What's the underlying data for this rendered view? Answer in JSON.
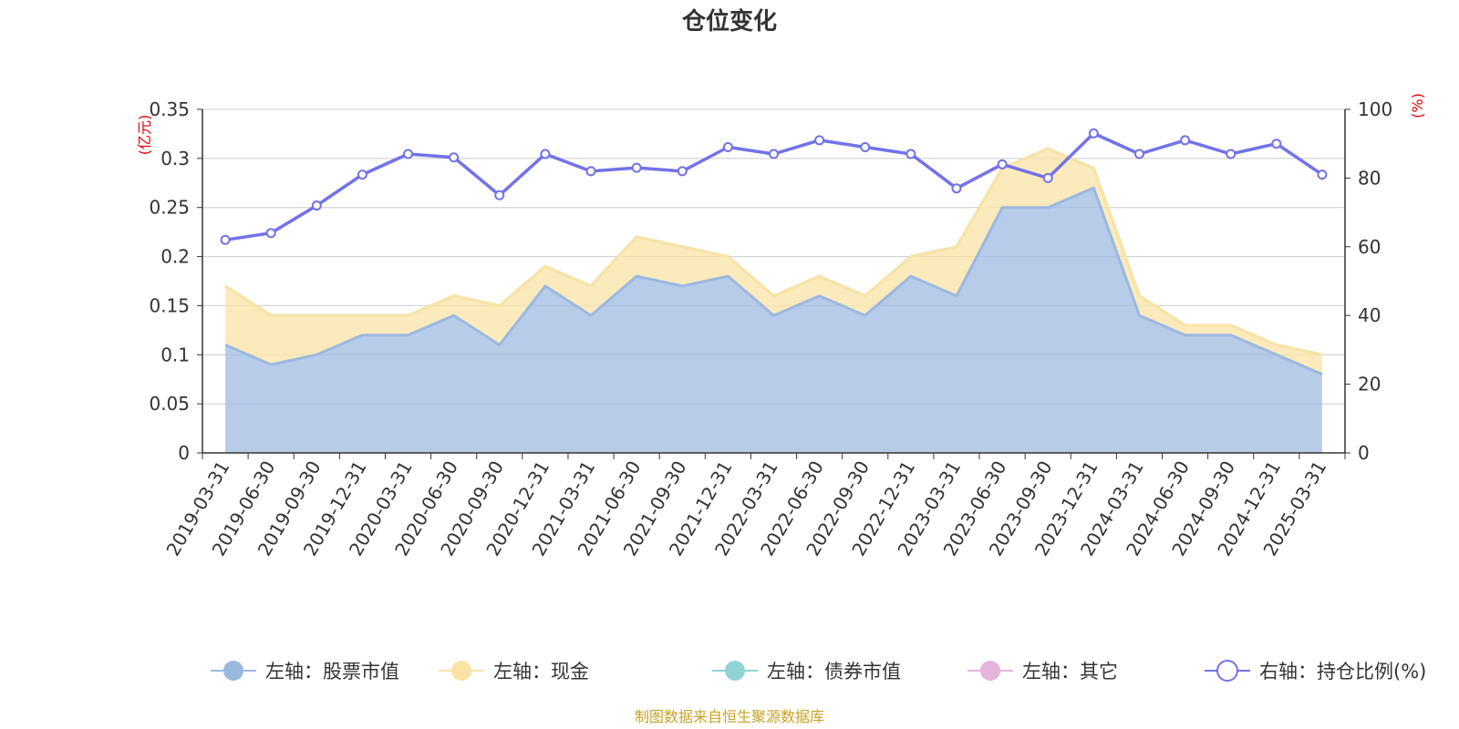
{
  "chart_data": {
    "type": "area",
    "title": "仓位变化",
    "left_axis": {
      "unit": "(亿元)",
      "ylim": [
        0,
        0.35
      ],
      "ticks": [
        "0",
        "0.05",
        "0.1",
        "0.15",
        "0.2",
        "0.25",
        "0.3",
        "0.35"
      ]
    },
    "right_axis": {
      "unit": "(%)",
      "ylim": [
        0,
        100
      ],
      "ticks": [
        "0",
        "20",
        "40",
        "60",
        "80",
        "100"
      ]
    },
    "categories": [
      "2019-03-31",
      "2019-06-30",
      "2019-09-30",
      "2019-12-31",
      "2020-03-31",
      "2020-06-30",
      "2020-09-30",
      "2020-12-31",
      "2021-03-31",
      "2021-06-30",
      "2021-09-30",
      "2021-12-31",
      "2022-03-31",
      "2022-06-30",
      "2022-09-30",
      "2022-12-31",
      "2023-03-31",
      "2023-06-30",
      "2023-09-30",
      "2023-12-31",
      "2024-03-31",
      "2024-06-30",
      "2024-09-30",
      "2024-12-31",
      "2025-03-31"
    ],
    "series": [
      {
        "name": "左轴：股票市值",
        "axis": "left",
        "color": "#9bb8e0",
        "values": [
          0.11,
          0.09,
          0.1,
          0.12,
          0.12,
          0.14,
          0.11,
          0.17,
          0.14,
          0.18,
          0.17,
          0.18,
          0.14,
          0.16,
          0.14,
          0.18,
          0.16,
          0.25,
          0.25,
          0.27,
          0.14,
          0.12,
          0.12,
          0.1,
          0.08
        ]
      },
      {
        "name": "左轴：现金",
        "axis": "left",
        "color": "#f9e4a6",
        "values": [
          0.06,
          0.05,
          0.04,
          0.02,
          0.02,
          0.02,
          0.04,
          0.02,
          0.03,
          0.04,
          0.04,
          0.02,
          0.02,
          0.02,
          0.02,
          0.02,
          0.05,
          0.04,
          0.06,
          0.02,
          0.02,
          0.01,
          0.01,
          0.01,
          0.02
        ]
      },
      {
        "name": "左轴：债券市值",
        "axis": "left",
        "color": "#8fd3d3",
        "values": [
          0,
          0,
          0,
          0,
          0,
          0,
          0,
          0,
          0,
          0,
          0,
          0,
          0,
          0,
          0,
          0,
          0,
          0,
          0,
          0,
          0,
          0,
          0,
          0,
          0
        ]
      },
      {
        "name": "左轴：其它",
        "axis": "left",
        "color": "#e6b3d9",
        "values": [
          0,
          0,
          0,
          0,
          0,
          0,
          0,
          0,
          0,
          0,
          0,
          0,
          0,
          0,
          0,
          0,
          0,
          0,
          0,
          0,
          0,
          0,
          0,
          0,
          0
        ]
      },
      {
        "name": "右轴：持仓比例(%)",
        "axis": "right",
        "color": "#7272e8",
        "values": [
          62,
          64,
          72,
          81,
          87,
          86,
          75,
          87,
          82,
          83,
          82,
          89,
          87,
          91,
          89,
          87,
          77,
          84,
          80,
          93,
          87,
          91,
          87,
          90,
          81
        ]
      }
    ],
    "legend_position": "bottom"
  },
  "source": "制图数据来自恒生聚源数据库"
}
